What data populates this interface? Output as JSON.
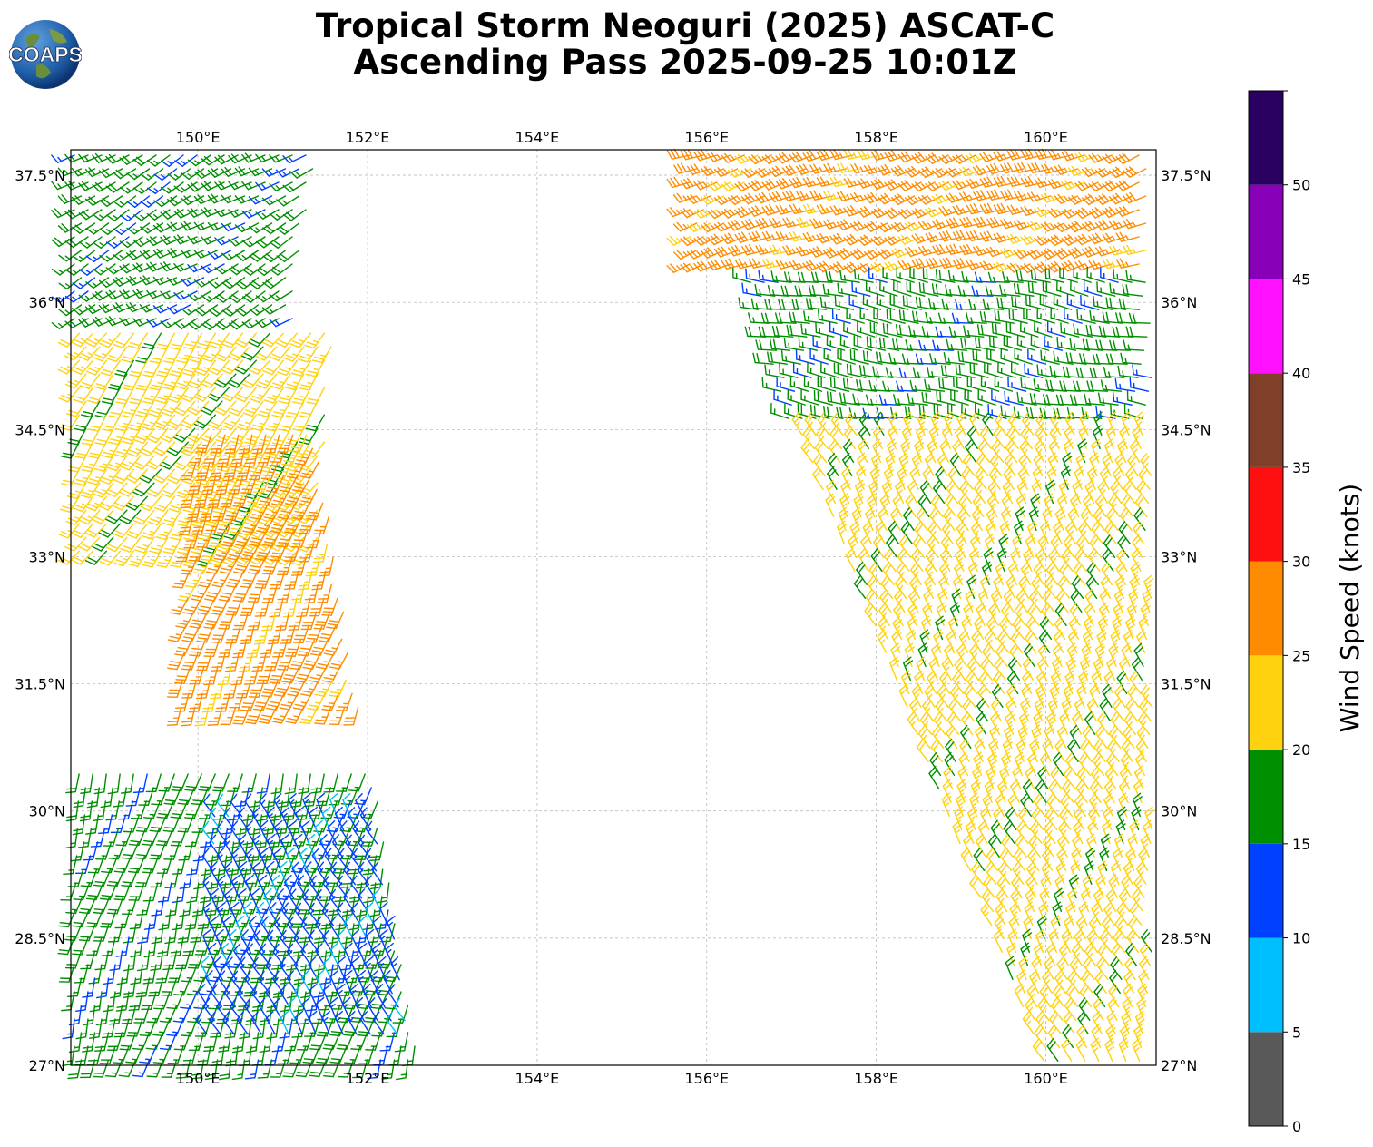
{
  "header": {
    "logo_text": "COAPS",
    "title_line1": "Tropical Storm Neoguri (2025) ASCAT-C",
    "title_line2": "Ascending Pass 2025-09-25 10:01Z"
  },
  "map": {
    "lon_range": [
      148.5,
      161.3
    ],
    "lat_range": [
      27.0,
      37.8
    ],
    "lon_ticks": [
      {
        "value": 150,
        "label": "150°E"
      },
      {
        "value": 152,
        "label": "152°E"
      },
      {
        "value": 154,
        "label": "154°E"
      },
      {
        "value": 156,
        "label": "156°E"
      },
      {
        "value": 158,
        "label": "158°E"
      },
      {
        "value": 160,
        "label": "160°E"
      }
    ],
    "lat_ticks": [
      {
        "value": 27.0,
        "label": "27°N"
      },
      {
        "value": 28.5,
        "label": "28.5°N"
      },
      {
        "value": 30.0,
        "label": "30°N"
      },
      {
        "value": 31.5,
        "label": "31.5°N"
      },
      {
        "value": 33.0,
        "label": "33°N"
      },
      {
        "value": 34.5,
        "label": "34.5°N"
      },
      {
        "value": 36.0,
        "label": "36°N"
      },
      {
        "value": 37.5,
        "label": "37.5°N"
      }
    ],
    "grid": true
  },
  "colorbar": {
    "label": "Wind Speed (knots)",
    "bins": [
      {
        "from": 0,
        "to": 5,
        "color": "#595959"
      },
      {
        "from": 5,
        "to": 10,
        "color": "#00bfff"
      },
      {
        "from": 10,
        "to": 15,
        "color": "#0040ff"
      },
      {
        "from": 15,
        "to": 20,
        "color": "#008f00"
      },
      {
        "from": 20,
        "to": 25,
        "color": "#ffd210"
      },
      {
        "from": 25,
        "to": 30,
        "color": "#ff8c00"
      },
      {
        "from": 30,
        "to": 35,
        "color": "#ff1010"
      },
      {
        "from": 35,
        "to": 40,
        "color": "#803f28"
      },
      {
        "from": 40,
        "to": 45,
        "color": "#ff10ff"
      },
      {
        "from": 45,
        "to": 50,
        "color": "#8800b8"
      },
      {
        "from": 50,
        "to": 55,
        "color": "#2a0060"
      }
    ],
    "tick_labels": [
      "0",
      "5",
      "10",
      "15",
      "20",
      "25",
      "30",
      "35",
      "40",
      "45",
      "50"
    ]
  },
  "wind_regions": [
    {
      "name": "west-swath-north",
      "lat": [
        35.7,
        37.8
      ],
      "west_lon": [
        148.5,
        148.5
      ],
      "east_lon": [
        151.1,
        151.4
      ],
      "wind_from_deg": 240,
      "speed_kts": 17
    },
    {
      "name": "west-swath-band",
      "lat": [
        33.0,
        35.7
      ],
      "west_lon": [
        148.6,
        148.6
      ],
      "east_lon": [
        151.4,
        151.6
      ],
      "wind_from_deg": 215,
      "speed_kts": 22
    },
    {
      "name": "west-swath-core",
      "lat": [
        31.2,
        34.5
      ],
      "west_lon": [
        149.8,
        150.0
      ],
      "east_lon": [
        151.9,
        151.4
      ],
      "wind_from_deg": 200,
      "speed_kts": 27
    },
    {
      "name": "west-swath-south",
      "lat": [
        27.0,
        30.5
      ],
      "west_lon": [
        148.5,
        148.6
      ],
      "east_lon": [
        152.6,
        152.1
      ],
      "wind_from_deg": 195,
      "speed_kts": 17
    },
    {
      "name": "west-swath-light",
      "lat": [
        27.2,
        30.0
      ],
      "west_lon": [
        150.1,
        150.2
      ],
      "east_lon": [
        152.5,
        152.1
      ],
      "wind_from_deg": 330,
      "speed_kts": 12
    },
    {
      "name": "east-swath-north",
      "lat": [
        36.3,
        37.8
      ],
      "west_lon": [
        155.8,
        155.8
      ],
      "east_lon": [
        161.3,
        161.3
      ],
      "wind_from_deg": 250,
      "speed_kts": 27
    },
    {
      "name": "east-swath-mid",
      "lat": [
        34.5,
        36.3
      ],
      "west_lon": [
        157.0,
        156.5
      ],
      "east_lon": [
        161.3,
        161.3
      ],
      "wind_from_deg": 280,
      "speed_kts": 17
    },
    {
      "name": "east-swath-south",
      "lat": [
        27.0,
        34.5
      ],
      "west_lon": [
        160.0,
        157.1
      ],
      "east_lon": [
        161.3,
        161.3
      ],
      "wind_from_deg": 330,
      "speed_kts": 22
    }
  ]
}
